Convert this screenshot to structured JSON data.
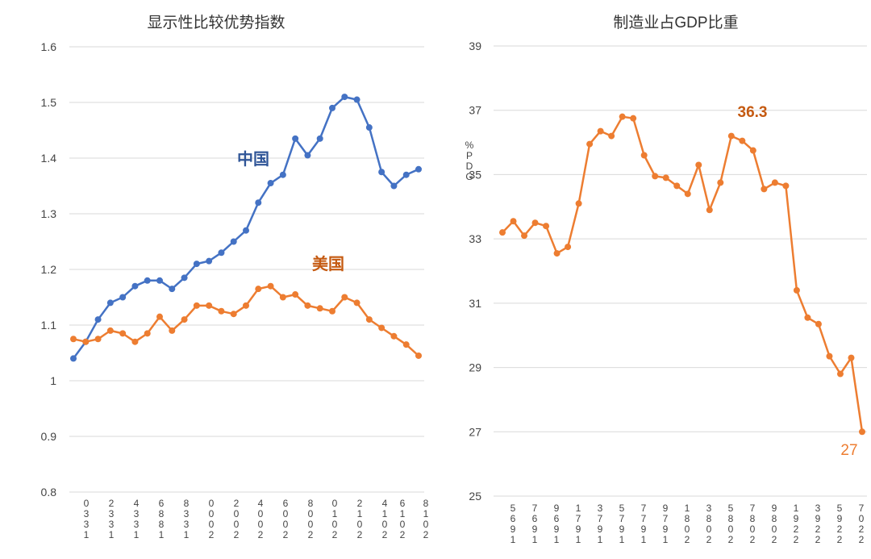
{
  "chart_data": [
    {
      "type": "line",
      "title": "显示性比较优势指数",
      "ylim": [
        0.8,
        1.6
      ],
      "yticks": [
        "0.8",
        "0.9",
        "1",
        "1.1",
        "1.2",
        "1.3",
        "1.4",
        "1.5",
        "1.6"
      ],
      "grid": true,
      "x_labels": [
        "0\n3\n3\n1",
        "2\n3\n3\n1",
        "4\n3\n3\n1",
        "6\n8\n8\n1",
        "8\n3\n3\n1",
        "0\n0\n0\n2",
        "2\n0\n0\n2",
        "4\n0\n0\n2",
        "6\n0\n0\n2",
        "8\n0\n0\n2",
        "0\n1\n0\n2",
        "2\n1\n0\n2",
        "4\n1\n0\n2",
        "6\n1\n0\n2",
        "8\n1\n0\n2"
      ],
      "series": [
        {
          "name": "中国",
          "color": "#4472C4",
          "label_color": "#2F5597",
          "values": [
            1.04,
            1.07,
            1.11,
            1.14,
            1.15,
            1.17,
            1.18,
            1.18,
            1.165,
            1.185,
            1.21,
            1.215,
            1.23,
            1.25,
            1.27,
            1.32,
            1.355,
            1.37,
            1.435,
            1.405,
            1.435,
            1.49,
            1.51,
            1.505,
            1.455,
            1.375,
            1.35,
            1.37,
            1.38
          ]
        },
        {
          "name": "美国",
          "color": "#ED7D31",
          "label_color": "#C55A11",
          "values": [
            1.075,
            1.07,
            1.075,
            1.09,
            1.085,
            1.07,
            1.085,
            1.115,
            1.09,
            1.11,
            1.135,
            1.135,
            1.125,
            1.12,
            1.135,
            1.165,
            1.17,
            1.15,
            1.155,
            1.135,
            1.13,
            1.125,
            1.15,
            1.14,
            1.11,
            1.095,
            1.08,
            1.065,
            1.045
          ]
        }
      ]
    },
    {
      "type": "line",
      "title": "制造业占GDP比重",
      "ylabel": "%\nP\nD\nG",
      "ylim": [
        25,
        39
      ],
      "yticks": [
        "25",
        "27",
        "29",
        "31",
        "33",
        "35",
        "37",
        "39"
      ],
      "grid": true,
      "x_labels": [
        "5\n6\n9\n1",
        "7\n6\n9\n1",
        "9\n6\n9\n1",
        "1\n7\n9\n1",
        "3\n7\n9\n1",
        "5\n7\n9\n1",
        "7\n7\n9\n1",
        "9\n7\n9\n1",
        "1\n8\n0\n2",
        "3\n8\n0\n2",
        "5\n8\n0\n2",
        "7\n8\n0\n2",
        "9\n8\n0\n2",
        "1\n9\n2\n2",
        "3\n9\n2\n2",
        "5\n9\n2\n2",
        "7\n0\n2\n2"
      ],
      "series": [
        {
          "name": "制造业占GDP比重",
          "color": "#ED7D31",
          "values": [
            33.2,
            33.55,
            33.1,
            33.5,
            33.4,
            32.55,
            32.75,
            34.1,
            35.95,
            36.35,
            36.2,
            36.8,
            36.75,
            35.6,
            34.95,
            34.9,
            34.65,
            34.4,
            35.3,
            33.9,
            34.75,
            36.2,
            36.05,
            35.75,
            34.55,
            34.75,
            34.65,
            31.4,
            30.55,
            30.35,
            29.35,
            28.8,
            29.3,
            27.0
          ]
        }
      ],
      "annotations": [
        {
          "text": "36.3",
          "color": "#C55A11"
        },
        {
          "text": "27",
          "color": "#ED7D31"
        }
      ]
    }
  ]
}
